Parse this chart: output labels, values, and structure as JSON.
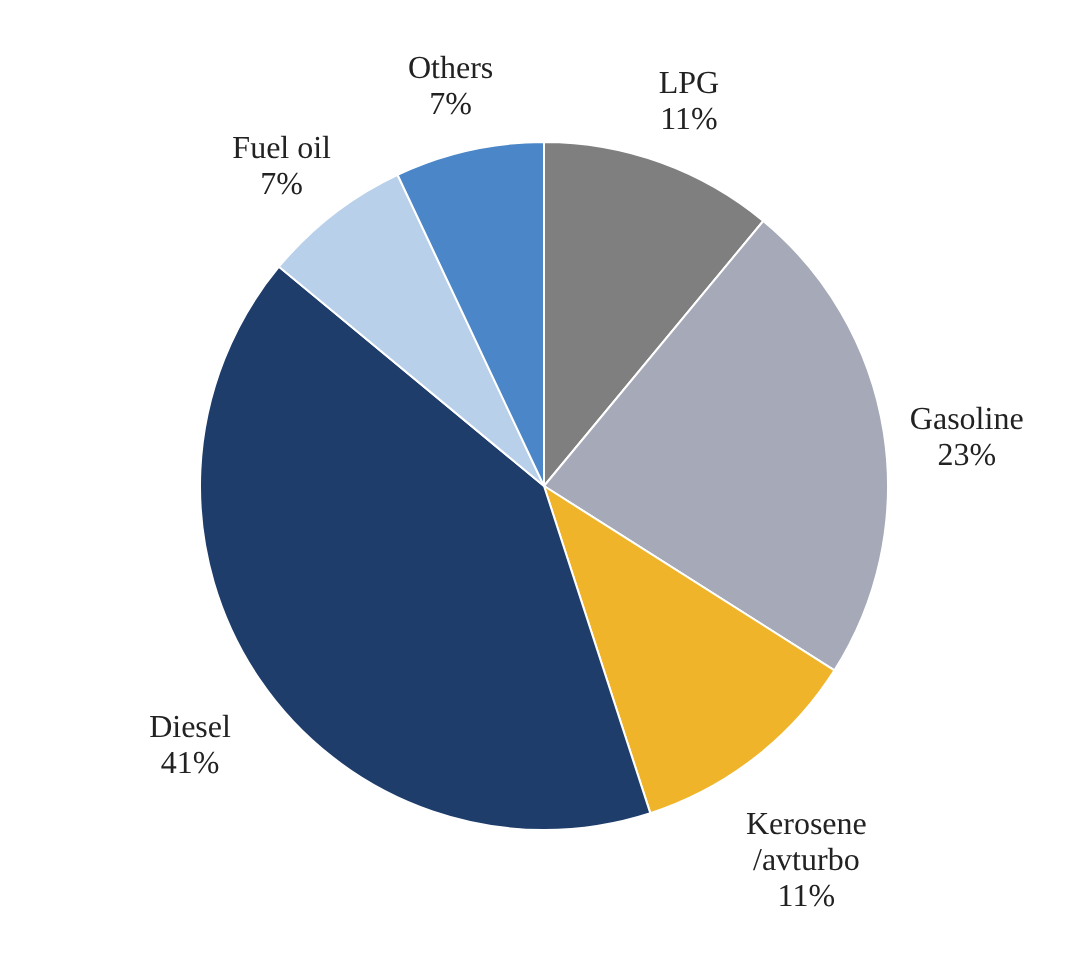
{
  "chart_data": {
    "type": "pie",
    "categories": [
      "LPG",
      "Gasoline",
      "Kerosene/avturbo",
      "Diesel",
      "Fuel oil",
      "Others"
    ],
    "values": [
      11,
      23,
      11,
      41,
      7,
      7
    ],
    "colors": [
      "#7f7f7f",
      "#a6a9b8",
      "#f0b42a",
      "#1f3d6b",
      "#b9d0ea",
      "#4a86c8"
    ],
    "value_labels": [
      "11%",
      "23%",
      "11%",
      "41%",
      "7%",
      "7%"
    ]
  }
}
